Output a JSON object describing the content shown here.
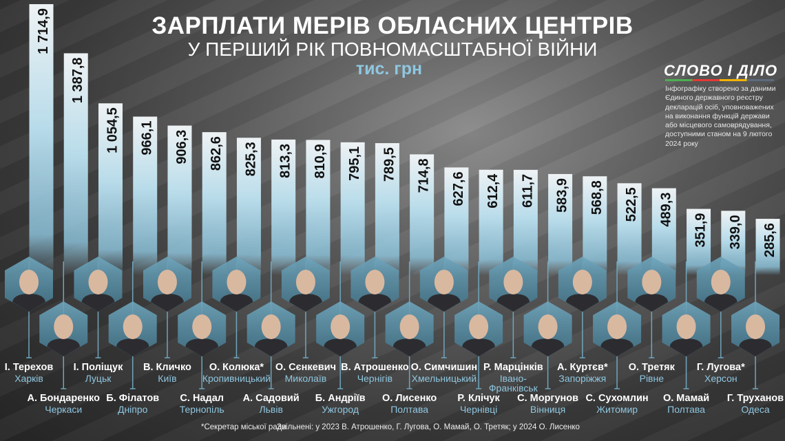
{
  "header": {
    "title": "ЗАРПЛАТИ МЕРІВ ОБЛАСНИХ ЦЕНТРІВ",
    "subtitle": "У ПЕРШИЙ РІК ПОВНОМАСШТАБНОЇ ВІЙНИ",
    "unit": "тис. грн"
  },
  "logo": {
    "text": "СЛОВО І ДІЛО",
    "colors": [
      "#4caf50",
      "#e53935",
      "#f4b400",
      "#5c6b7f"
    ]
  },
  "source_note": "Інфографіку створено за даними Єдиного державного реєстру декларацій осіб, уповноважених на виконання функцій держави або місцевого самоврядування, доступними станом на 9 лютого 2024 року",
  "footnotes": {
    "asterisk": "*Секретар міської ради",
    "dismissed": "Звільнені: у 2023 В. Атрошенко, Г. Лугова, О. Мамай, О. Третяк; у 2024 О. Лисенко"
  },
  "chart_data": {
    "type": "bar",
    "title": "ЗАРПЛАТИ МЕРІВ ОБЛАСНИХ ЦЕНТРІВ",
    "ylabel": "тис. грн",
    "bar_color": "#8fc7e0",
    "categories": [
      {
        "name": "І. Терехов",
        "city": "Харків"
      },
      {
        "name": "А. Бондаренко",
        "city": "Черкаси"
      },
      {
        "name": "І. Поліщук",
        "city": "Луцьк"
      },
      {
        "name": "Б. Філатов",
        "city": "Дніпро"
      },
      {
        "name": "В. Кличко",
        "city": "Київ"
      },
      {
        "name": "С. Надал",
        "city": "Тернопіль"
      },
      {
        "name": "О. Колюка*",
        "city": "Кропивницький"
      },
      {
        "name": "А. Садовий",
        "city": "Львів"
      },
      {
        "name": "О. Сєнкевич",
        "city": "Миколаїв"
      },
      {
        "name": "Б. Андріїв",
        "city": "Ужгород"
      },
      {
        "name": "В. Атрошенко",
        "city": "Чернігів"
      },
      {
        "name": "О. Лисенко",
        "city": "Полтава"
      },
      {
        "name": "О. Симчишин",
        "city": "Хмельницький"
      },
      {
        "name": "Р. Клічук",
        "city": "Чернівці"
      },
      {
        "name": "Р. Марцінків",
        "city": "Івано-Франківськ"
      },
      {
        "name": "С. Моргунов",
        "city": "Вінниця"
      },
      {
        "name": "А. Куртєв*",
        "city": "Запоріжжя"
      },
      {
        "name": "С. Сухомлин",
        "city": "Житомир"
      },
      {
        "name": "О. Третяк",
        "city": "Рівне"
      },
      {
        "name": "О. Мамай",
        "city": "Полтава"
      },
      {
        "name": "Г. Лугова*",
        "city": "Херсон"
      },
      {
        "name": "Г. Труханов",
        "city": "Одеса"
      }
    ],
    "values": [
      1714.9,
      1387.8,
      1054.5,
      966.1,
      906.3,
      862.6,
      825.3,
      813.3,
      810.9,
      795.1,
      789.5,
      714.8,
      627.6,
      612.4,
      611.7,
      583.9,
      568.8,
      522.5,
      489.3,
      351.9,
      339.0,
      285.6
    ],
    "value_labels": [
      "1 714,9",
      "1 387,8",
      "1 054,5",
      "966,1",
      "906,3",
      "862,6",
      "825,3",
      "813,3",
      "810,9",
      "795,1",
      "789,5",
      "714,8",
      "627,6",
      "612,4",
      "611,7",
      "583,9",
      "568,8",
      "522,5",
      "489,3",
      "351,9",
      "339,0",
      "285,6"
    ]
  }
}
